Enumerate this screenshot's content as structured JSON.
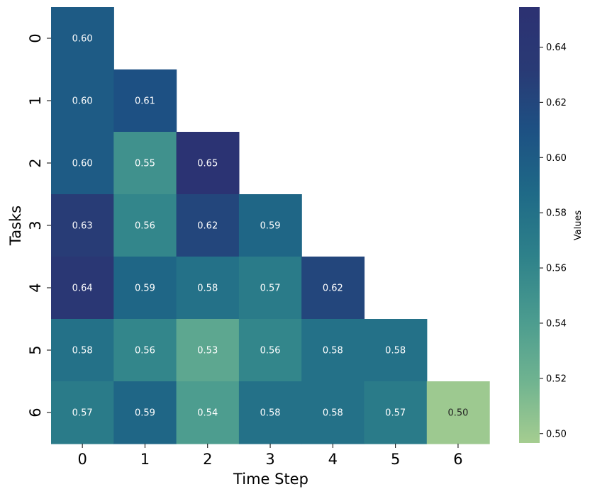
{
  "chart_data": {
    "type": "heatmap",
    "xlabel": "Time Step",
    "ylabel": "Tasks",
    "x_ticks": [
      "0",
      "1",
      "2",
      "3",
      "4",
      "5",
      "6"
    ],
    "y_ticks": [
      "0",
      "1",
      "2",
      "3",
      "4",
      "5",
      "6"
    ],
    "values": [
      [
        0.6
      ],
      [
        0.6,
        0.61
      ],
      [
        0.6,
        0.55,
        0.65
      ],
      [
        0.63,
        0.56,
        0.62,
        0.59
      ],
      [
        0.64,
        0.59,
        0.58,
        0.57,
        0.62
      ],
      [
        0.58,
        0.56,
        0.53,
        0.56,
        0.58,
        0.58
      ],
      [
        0.57,
        0.59,
        0.54,
        0.58,
        0.58,
        0.57,
        0.5
      ]
    ],
    "cell_labels": [
      [
        "0.60"
      ],
      [
        "0.60",
        "0.61"
      ],
      [
        "0.60",
        "0.55",
        "0.65"
      ],
      [
        "0.63",
        "0.56",
        "0.62",
        "0.59"
      ],
      [
        "0.64",
        "0.59",
        "0.58",
        "0.57",
        "0.62"
      ],
      [
        "0.58",
        "0.56",
        "0.53",
        "0.56",
        "0.58",
        "0.58"
      ],
      [
        "0.57",
        "0.59",
        "0.54",
        "0.58",
        "0.58",
        "0.57",
        "0.50"
      ]
    ],
    "colorbar": {
      "label": "Values",
      "range": [
        0.4966,
        0.6545
      ],
      "ticks": [
        "0.50",
        "0.52",
        "0.54",
        "0.56",
        "0.58",
        "0.60",
        "0.62",
        "0.64"
      ],
      "colormap": "crest",
      "colors": [
        "#a5cd90",
        "#6fb390",
        "#4a9b8f",
        "#2e818a",
        "#1f6a87",
        "#1d5183",
        "#293a75",
        "#2c3172"
      ]
    },
    "mask": "upper-triangle",
    "grid": false
  }
}
